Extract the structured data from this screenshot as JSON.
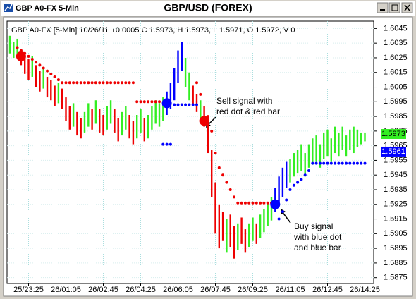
{
  "chart_data": {
    "type": "range_bar",
    "window_title": "GBP A0-FX 5-Min",
    "title": "GBP/USD (FOREX)",
    "subtitle": "GBP A0-FX [5-Min] 10/26/11 +0.0005 C 1.5973, H 1.5973, L 1.5971, O 1.5972, V 0",
    "categories": [
      null,
      null,
      null,
      null,
      null,
      "25/23:25",
      null,
      null,
      null,
      null,
      null,
      null,
      null,
      null,
      null,
      "26/01:05",
      null,
      null,
      null,
      null,
      null,
      null,
      null,
      null,
      null,
      "26/02:45",
      null,
      null,
      null,
      null,
      null,
      null,
      null,
      null,
      null,
      "26/04:25",
      null,
      null,
      null,
      null,
      null,
      null,
      null,
      null,
      null,
      "26/06:05",
      null,
      null,
      null,
      null,
      null,
      null,
      null,
      null,
      null,
      "26/07:45",
      null,
      null,
      null,
      null,
      null,
      null,
      null,
      null,
      null,
      "26/09:25",
      null,
      null,
      null,
      null,
      null,
      null,
      null,
      null,
      null,
      "26/11:05",
      null,
      null,
      null,
      null,
      null,
      null,
      null,
      null,
      null,
      "26/12:45",
      null,
      null,
      null,
      null,
      null,
      null,
      null,
      null,
      null,
      "26/14:25"
    ],
    "high": [
      1.604,
      1.6036,
      1.6038,
      1.603,
      1.6028,
      1.6024,
      1.6026,
      1.602,
      1.6016,
      1.6018,
      1.6012,
      1.601,
      1.6006,
      1.6008,
      1.6004,
      1.5998,
      1.5992,
      1.5994,
      1.5988,
      1.5984,
      1.5988,
      1.5994,
      1.599,
      1.5996,
      1.599,
      1.5986,
      1.5992,
      1.5996,
      1.599,
      1.5984,
      1.5988,
      1.5992,
      1.5986,
      1.5982,
      1.5986,
      1.599,
      1.5984,
      1.5986,
      1.5992,
      1.5996,
      1.5994,
      1.5998,
      1.6002,
      1.6008,
      1.6018,
      1.603,
      1.6036,
      1.6025,
      1.6015,
      1.6006,
      1.6,
      1.5996,
      1.5992,
      1.5985,
      1.5962,
      1.594,
      1.5925,
      1.592,
      1.5915,
      1.5918,
      1.591,
      1.5912,
      1.5916,
      1.5908,
      1.5912,
      1.5916,
      1.5912,
      1.5918,
      1.5922,
      1.5926,
      1.593,
      1.5936,
      1.5944,
      1.595,
      1.5954,
      1.5956,
      1.596,
      1.5962,
      1.5966,
      1.596,
      1.5966,
      1.597,
      1.5972,
      1.5966,
      1.5974,
      1.5976,
      1.597,
      1.5978,
      1.5974,
      1.5978,
      1.5972,
      1.5976,
      1.5978,
      1.5976,
      1.5974,
      1.5974
    ],
    "low": [
      1.6028,
      1.6025,
      1.6027,
      1.602,
      1.6014,
      1.601,
      1.6012,
      1.6005,
      1.6002,
      1.6004,
      1.5998,
      1.5996,
      1.5992,
      1.5994,
      1.599,
      1.5982,
      1.5976,
      1.5978,
      1.5972,
      1.597,
      1.5974,
      1.5978,
      1.5976,
      1.598,
      1.5974,
      1.5972,
      1.5976,
      1.598,
      1.5974,
      1.5968,
      1.5972,
      1.5976,
      1.597,
      1.5966,
      1.597,
      1.5974,
      1.5968,
      1.597,
      1.5976,
      1.598,
      1.5978,
      1.5982,
      1.5986,
      1.599,
      1.5996,
      1.6008,
      1.6016,
      1.6005,
      1.5996,
      1.5992,
      1.5988,
      1.5984,
      1.5978,
      1.596,
      1.593,
      1.5905,
      1.5895,
      1.59,
      1.5892,
      1.5896,
      1.5888,
      1.5894,
      1.5898,
      1.5892,
      1.5896,
      1.59,
      1.5898,
      1.5902,
      1.5906,
      1.591,
      1.5914,
      1.592,
      1.5926,
      1.593,
      1.5936,
      1.594,
      1.5944,
      1.5946,
      1.5948,
      1.5944,
      1.595,
      1.5952,
      1.5954,
      1.595,
      1.5956,
      1.5958,
      1.5954,
      1.596,
      1.5958,
      1.5962,
      1.5958,
      1.5962,
      1.596,
      1.5964,
      1.5966,
      1.5968
    ],
    "bar_colors": [
      "#33ee22",
      "#33ee22",
      "#33ee22",
      "#ee0000",
      "#ee0000",
      "#ee0000",
      "#33ee22",
      "#ee0000",
      "#ee0000",
      "#33ee22",
      "#ee0000",
      "#ee0000",
      "#ee0000",
      "#33ee22",
      "#ee0000",
      "#ee0000",
      "#ee0000",
      "#33ee22",
      "#ee0000",
      "#ee0000",
      "#33ee22",
      "#33ee22",
      "#ee0000",
      "#33ee22",
      "#ee0000",
      "#ee0000",
      "#33ee22",
      "#33ee22",
      "#ee0000",
      "#ee0000",
      "#33ee22",
      "#33ee22",
      "#ee0000",
      "#ee0000",
      "#33ee22",
      "#33ee22",
      "#ee0000",
      "#33ee22",
      "#33ee22",
      "#33ee22",
      "#33ee22",
      "#33ee22",
      "#0000ff",
      "#0000ff",
      "#0000ff",
      "#0000ff",
      "#0000ff",
      "#33ee22",
      "#33ee22",
      "#ee0000",
      "#ee0000",
      "#33ee22",
      "#ee0000",
      "#ee0000",
      "#ee0000",
      "#ee0000",
      "#ee0000",
      "#ee0000",
      "#33ee22",
      "#ee0000",
      "#ee0000",
      "#33ee22",
      "#ee0000",
      "#ee0000",
      "#33ee22",
      "#33ee22",
      "#ee0000",
      "#33ee22",
      "#33ee22",
      "#33ee22",
      "#33ee22",
      "#0000ff",
      "#0000ff",
      "#0000ff",
      "#0000ff",
      "#33ee22",
      "#33ee22",
      "#33ee22",
      "#33ee22",
      "#33ee22",
      "#33ee22",
      "#33ee22",
      "#33ee22",
      "#33ee22",
      "#33ee22",
      "#33ee22",
      "#33ee22",
      "#33ee22",
      "#33ee22",
      "#33ee22",
      "#33ee22",
      "#33ee22",
      "#33ee22",
      "#33ee22",
      "#33ee22",
      "#33ee22"
    ],
    "dots": [
      {
        "color": "#ee0000",
        "size": 2,
        "values": [
          null,
          null,
          1.6032,
          1.603,
          1.6028,
          1.6026,
          1.6024,
          1.6022,
          1.602,
          1.6018,
          1.6016,
          1.6014,
          1.6012,
          1.601,
          1.6008,
          1.6008,
          1.6008,
          1.6008,
          1.6008,
          1.6008,
          1.6008,
          1.6008,
          1.6008,
          1.6008,
          1.6008,
          1.6008,
          1.6008,
          1.6008,
          1.6008,
          1.6008,
          1.6008,
          1.6008,
          1.6008,
          1.6008,
          1.5995,
          1.5995,
          1.5995,
          1.5995,
          1.5995,
          1.5995,
          1.5995,
          null,
          null,
          null,
          null,
          null,
          null,
          null,
          null,
          null,
          1.6008,
          1.6,
          null,
          1.5985,
          1.5975,
          1.596,
          1.595,
          1.5945,
          1.594,
          1.5935,
          1.593,
          1.5926,
          1.5926,
          1.5926,
          1.5926,
          1.5926,
          1.5926,
          1.5926,
          1.5926,
          1.5926,
          1.5926,
          null,
          null,
          null,
          null,
          null,
          null,
          null,
          null,
          null,
          null,
          null,
          null,
          null,
          null,
          null,
          null,
          null,
          null,
          null,
          null,
          null,
          null,
          null,
          null,
          null
        ]
      },
      {
        "color": "#0000ff",
        "size": 2,
        "values": [
          null,
          null,
          null,
          null,
          null,
          null,
          null,
          null,
          null,
          null,
          null,
          null,
          null,
          null,
          null,
          null,
          null,
          null,
          null,
          null,
          null,
          null,
          null,
          null,
          null,
          null,
          null,
          null,
          null,
          null,
          null,
          null,
          null,
          null,
          null,
          null,
          null,
          null,
          null,
          null,
          null,
          1.5966,
          1.5966,
          1.5966,
          1.5993,
          1.5993,
          1.5993,
          1.5993,
          1.5993,
          1.5993,
          1.5993,
          null,
          null,
          null,
          null,
          null,
          null,
          null,
          null,
          null,
          null,
          null,
          null,
          null,
          null,
          null,
          null,
          null,
          null,
          null,
          null,
          null,
          1.5915,
          1.592,
          1.5928,
          1.5935,
          1.5938,
          1.594,
          1.5942,
          1.5945,
          1.5948,
          1.5953,
          1.5953,
          1.5953,
          1.5953,
          1.5953,
          1.5953,
          1.5953,
          1.5953,
          1.5953,
          1.5953,
          1.5953,
          1.5953,
          1.5953,
          1.5953,
          1.5953
        ]
      },
      {
        "color": "#ee0000",
        "size": 7,
        "values": [
          null,
          null,
          null,
          1.6026,
          null,
          null,
          null,
          null,
          null,
          null,
          null,
          null,
          null,
          null,
          null,
          null,
          null,
          null,
          null,
          null,
          null,
          null,
          null,
          null,
          null,
          null,
          null,
          null,
          null,
          null,
          null,
          null,
          null,
          null,
          null,
          null,
          null,
          null,
          null,
          null,
          null,
          null,
          null,
          null,
          null,
          null,
          null,
          null,
          null,
          null,
          null,
          null,
          1.5982,
          null,
          null,
          null,
          null,
          null,
          null,
          null,
          null,
          null,
          null,
          null,
          null,
          null,
          null,
          null,
          null,
          null,
          null,
          null,
          null,
          null,
          null,
          null,
          null,
          null,
          null,
          null,
          null,
          null,
          null,
          null,
          null,
          null,
          null,
          null,
          null,
          null,
          null,
          null,
          null,
          null,
          null,
          null
        ]
      },
      {
        "color": "#0000ff",
        "size": 7,
        "values": [
          null,
          null,
          null,
          null,
          null,
          null,
          null,
          null,
          null,
          null,
          null,
          null,
          null,
          null,
          null,
          null,
          null,
          null,
          null,
          null,
          null,
          null,
          null,
          null,
          null,
          null,
          null,
          null,
          null,
          null,
          null,
          null,
          null,
          null,
          null,
          null,
          null,
          null,
          null,
          null,
          null,
          null,
          1.5994,
          null,
          null,
          null,
          null,
          null,
          null,
          null,
          null,
          null,
          null,
          null,
          null,
          null,
          null,
          null,
          null,
          null,
          null,
          null,
          null,
          null,
          null,
          null,
          null,
          null,
          null,
          null,
          null,
          1.5925,
          null,
          null,
          null,
          null,
          null,
          null,
          null,
          null,
          null,
          null,
          null,
          null,
          null,
          null,
          null,
          null,
          null,
          null,
          null,
          null,
          null,
          null,
          null,
          null
        ]
      }
    ],
    "price_labels": [
      {
        "value": 1.5973,
        "color": "#33ee22",
        "text_color": "#000000"
      },
      {
        "value": 1.5961,
        "color": "#0000ff",
        "text_color": "#ffffff"
      }
    ],
    "annotations": [
      {
        "lines": [
          "Sell signal with",
          "red dot & red bar"
        ]
      },
      {
        "lines": [
          "Buy signal",
          "with blue dot",
          "and blue bar"
        ]
      }
    ],
    "ylim": [
      1.5871,
      1.605
    ],
    "yticks": [
      1.6045,
      1.6035,
      1.6025,
      1.6015,
      1.6005,
      1.5995,
      1.5985,
      1.5975,
      1.5965,
      1.5955,
      1.5945,
      1.5935,
      1.5925,
      1.5915,
      1.5905,
      1.5895,
      1.5885,
      1.5875
    ],
    "grid": true
  }
}
